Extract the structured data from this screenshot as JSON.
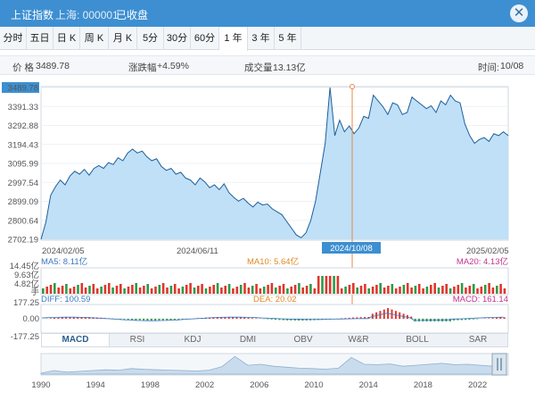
{
  "window": {
    "title": "上证指数",
    "market_code": "上海: 000001",
    "status": "已收盘"
  },
  "timeframe_tabs": [
    {
      "label": "分时",
      "active": false
    },
    {
      "label": "五日",
      "active": false
    },
    {
      "label": "日 K",
      "active": false
    },
    {
      "label": "周 K",
      "active": false
    },
    {
      "label": "月 K",
      "active": false
    },
    {
      "label": "5分",
      "active": false
    },
    {
      "label": "30分",
      "active": false
    },
    {
      "label": "60分",
      "active": false
    },
    {
      "label": "1 年",
      "active": true
    },
    {
      "label": "3 年",
      "active": false
    },
    {
      "label": "5 年",
      "active": false
    }
  ],
  "info_bar": {
    "price_label": "价 格",
    "price_value": "3489.78",
    "change_label": "涨跌幅",
    "change_value": "+4.59%",
    "volume_label": "成交量",
    "volume_value": "13.13亿",
    "time_label": "时间:",
    "time_value": "10/08"
  },
  "chart_data": {
    "type": "area",
    "price_ticks": [
      "3489.78",
      "3391.33",
      "3292.88",
      "3194.43",
      "3095.99",
      "2997.54",
      "2899.09",
      "2800.64",
      "2702.19"
    ],
    "ylim": [
      2702.19,
      3489.78
    ],
    "date_labels": [
      "2024/02/05",
      "2024/06/11",
      "2024/10/08",
      "2025/02/05"
    ],
    "cursor_date": "2024/10/08",
    "series": [
      {
        "values": [
          2702,
          2790,
          2930,
          2975,
          3010,
          2985,
          3030,
          3055,
          3040,
          3065,
          3035,
          3070,
          3085,
          3070,
          3100,
          3090,
          3125,
          3110,
          3150,
          3170,
          3150,
          3160,
          3130,
          3110,
          3120,
          3080,
          3060,
          3070,
          3040,
          3050,
          3020,
          3010,
          2985,
          3020,
          3000,
          2970,
          2985,
          2960,
          2990,
          2945,
          2920,
          2900,
          2915,
          2890,
          2870,
          2895,
          2880,
          2885,
          2860,
          2845,
          2830,
          2795,
          2760,
          2725,
          2710,
          2735,
          2800,
          2900,
          3050,
          3200,
          3489.78,
          3240,
          3320,
          3260,
          3290,
          3250,
          3280,
          3340,
          3330,
          3450,
          3420,
          3390,
          3350,
          3410,
          3400,
          3350,
          3360,
          3440,
          3420,
          3400,
          3380,
          3395,
          3360,
          3420,
          3400,
          3450,
          3420,
          3410,
          3300,
          3240,
          3200,
          3220,
          3230,
          3210,
          3250,
          3240,
          3260,
          3240
        ]
      }
    ]
  },
  "volume_panel": {
    "ticks": [
      "14.45亿",
      "9.63亿",
      "4.82亿",
      "手"
    ],
    "labels": [
      {
        "text": "MA5: 8.11亿",
        "color": "#3a78c3"
      },
      {
        "text": "MA10: 5.64亿",
        "color": "#e08a25"
      },
      {
        "text": "MA20: 4.13亿",
        "color": "#c2348e"
      }
    ]
  },
  "macd_panel": {
    "ticks": [
      "177.25",
      "0.00",
      "-177.25"
    ],
    "labels": [
      {
        "text": "DIFF: 100.59",
        "color": "#3a78c3"
      },
      {
        "text": "DEA: 20.02",
        "color": "#e08a25"
      },
      {
        "text": "MACD: 161.14",
        "color": "#c2348e"
      }
    ]
  },
  "indicator_tabs": [
    {
      "label": "MACD",
      "active": true
    },
    {
      "label": "RSI",
      "active": false
    },
    {
      "label": "KDJ",
      "active": false
    },
    {
      "label": "DMI",
      "active": false
    },
    {
      "label": "OBV",
      "active": false
    },
    {
      "label": "W&R",
      "active": false
    },
    {
      "label": "BOLL",
      "active": false
    },
    {
      "label": "SAR",
      "active": false
    }
  ],
  "overview": {
    "years": [
      "1990",
      "1994",
      "1998",
      "2002",
      "2006",
      "2010",
      "2014",
      "2018",
      "2022"
    ],
    "history": [
      0.05,
      0.18,
      0.1,
      0.14,
      0.18,
      0.22,
      0.2,
      0.28,
      0.24,
      0.22,
      0.2,
      0.18,
      0.16,
      0.2,
      0.38,
      0.9,
      0.45,
      0.5,
      0.4,
      0.35,
      0.3,
      0.28,
      0.25,
      0.3,
      0.85,
      0.5,
      0.48,
      0.52,
      0.4,
      0.45,
      0.5,
      0.55,
      0.48,
      0.5,
      0.45,
      0.4,
      0.5
    ]
  },
  "colors": {
    "accent": "#3d8fd1",
    "line": "#1e5f9a",
    "area": "#bfe0f7",
    "up": "#e0362c",
    "down": "#2e9a4a",
    "cursor": "#e5884a"
  }
}
